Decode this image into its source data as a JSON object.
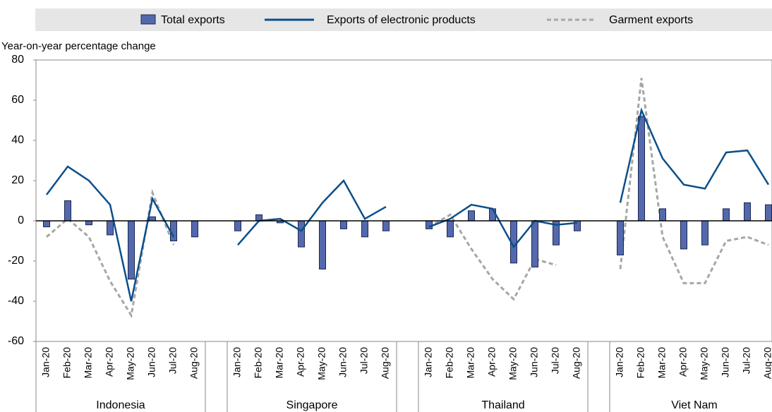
{
  "chart_data": {
    "type": "bar-line",
    "y_axis_label": "Year-on-year percentage change",
    "groups": [
      "Indonesia",
      "Singapore",
      "Thailand",
      "Viet Nam"
    ],
    "categories": [
      "Jan-20",
      "Feb-20",
      "Mar-20",
      "Apr-20",
      "May-20",
      "Jun-20",
      "Jul-20",
      "Aug-20",
      "Jan-20",
      "Feb-20",
      "Mar-20",
      "Apr-20",
      "May-20",
      "Jun-20",
      "Jul-20",
      "Aug-20",
      "Jan-20",
      "Feb-20",
      "Mar-20",
      "Apr-20",
      "May-20",
      "Jun-20",
      "Jul-20",
      "Aug-20",
      "Jan-20",
      "Feb-20",
      "Mar-20",
      "Apr-20",
      "May-20",
      "Jun-20",
      "Jul-20",
      "Aug-20"
    ],
    "series": [
      {
        "name": "Total exports",
        "kind": "bar",
        "color": "#5469ad",
        "values": [
          -3,
          10,
          -2,
          -7,
          -29,
          2,
          -10,
          -8,
          -5,
          3,
          -1,
          -13,
          -24,
          -4,
          -8,
          -5,
          -4,
          -8,
          5,
          6,
          -21,
          -23,
          -12,
          -5,
          -17,
          52,
          6,
          -14,
          -12,
          6,
          9,
          8
        ]
      },
      {
        "name": "Exports of electronic products",
        "kind": "line",
        "color": "#0b4f8a",
        "values": [
          13,
          27,
          20,
          8,
          -40,
          11,
          -8,
          null,
          -12,
          0,
          1,
          -5,
          9,
          20,
          1,
          7,
          -3,
          1,
          8,
          6,
          -13,
          0,
          -2,
          -1,
          9,
          55,
          31,
          18,
          16,
          34,
          35,
          18
        ]
      },
      {
        "name": "Garment exports",
        "kind": "dashed",
        "color": "#a6a6a6",
        "values": [
          -8,
          1,
          -8,
          -30,
          -47,
          14,
          -12,
          null,
          null,
          null,
          null,
          null,
          null,
          null,
          null,
          null,
          -3,
          3,
          -14,
          -29,
          -39,
          -19,
          -22,
          null,
          -24,
          71,
          -8,
          -31,
          -31,
          -10,
          -8,
          -12
        ]
      }
    ],
    "ylim": [
      -60,
      80
    ],
    "yticks": [
      -60,
      -40,
      -20,
      0,
      20,
      40,
      60,
      80
    ]
  }
}
